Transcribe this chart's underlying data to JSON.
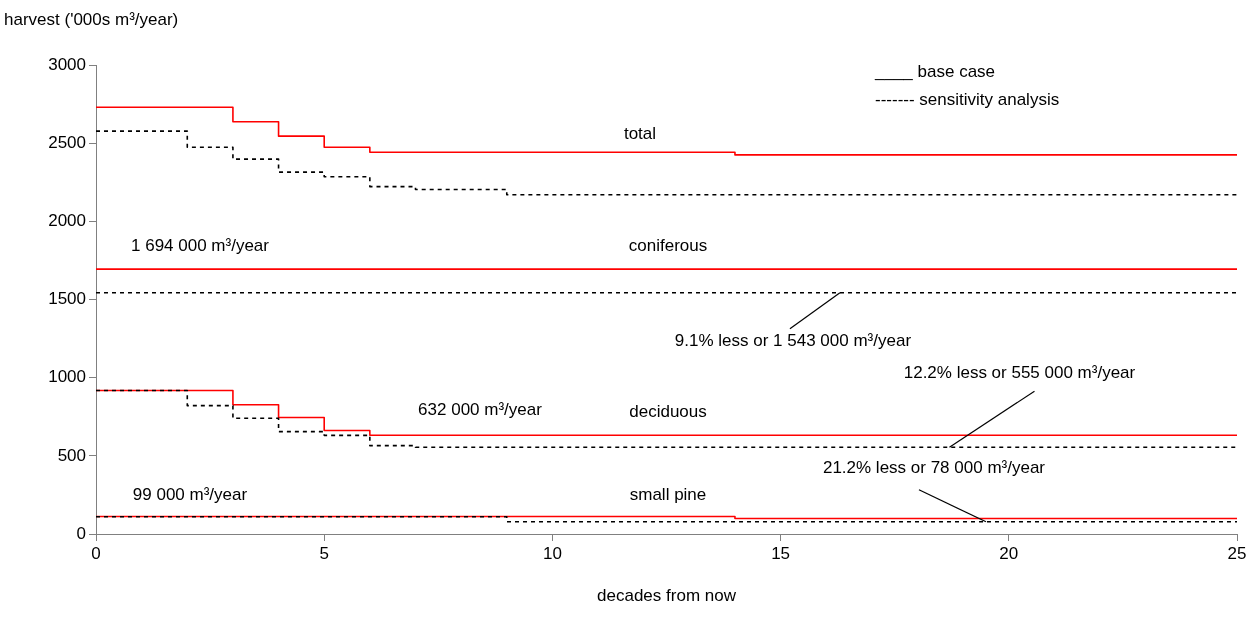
{
  "chart_data": {
    "type": "step",
    "xlabel": "decades from now",
    "ylabel": "harvest ('000s m³/year)",
    "xlim": [
      0,
      25
    ],
    "xticks": [
      0,
      5,
      10,
      15,
      20,
      25
    ],
    "ylim": [
      0,
      3000
    ],
    "yticks": [
      0,
      500,
      1000,
      1500,
      2000,
      2500,
      3000
    ],
    "grid": false,
    "legend": false,
    "marker": "none",
    "series": [
      {
        "color": "#ff0000",
        "line_style": "solid",
        "x": [
          0,
          3,
          4,
          5,
          6,
          14,
          25
        ],
        "values": [
          2730,
          2637,
          2545,
          2474,
          2442,
          2425,
          2425
        ]
      },
      {
        "color": "#000000",
        "line_style": "dashed",
        "x": [
          0,
          2,
          3,
          4,
          5,
          6,
          7,
          9,
          25
        ],
        "values": [
          2577,
          2474,
          2398,
          2315,
          2285,
          2222,
          2204,
          2170,
          2170
        ]
      },
      {
        "color": "#ff0000",
        "line_style": "solid",
        "x": [
          0,
          25
        ],
        "values": [
          1694,
          1694
        ]
      },
      {
        "color": "#000000",
        "line_style": "dashed",
        "x": [
          0,
          25
        ],
        "values": [
          1543,
          1543
        ]
      },
      {
        "color": "#ff0000",
        "line_style": "solid",
        "x": [
          0,
          3,
          4,
          5,
          6,
          25
        ],
        "values": [
          918,
          827,
          745,
          662,
          632,
          632
        ]
      },
      {
        "color": "#000000",
        "line_style": "dashed",
        "x": [
          0,
          2,
          3,
          4,
          5,
          6,
          7,
          25
        ],
        "values": [
          918,
          821,
          740,
          655,
          631,
          565,
          555,
          555
        ]
      },
      {
        "color": "#ff0000",
        "line_style": "solid",
        "x": [
          0,
          14,
          25
        ],
        "values": [
          112,
          99,
          99
        ]
      },
      {
        "color": "#000000",
        "line_style": "dashed",
        "x": [
          0,
          9,
          25
        ],
        "values": [
          110,
          78,
          78
        ]
      }
    ],
    "annotations": [
      "____ base case",
      "------- sensitivity analysis",
      "total",
      "coniferous",
      "deciduous",
      "small pine",
      "1 694 000 m³/year",
      "632 000 m³/year",
      "99 000 m³/year",
      {
        "text": "9.1% less or 1 543 000 m³/year",
        "x": 16.3,
        "y": 1543
      },
      {
        "text": "12.2% less or 555 000 m³/year",
        "x": 18.7,
        "y": 555
      },
      {
        "text": "21.2% less or 78 000 m³/year",
        "x": 19.5,
        "y": 78
      }
    ]
  }
}
